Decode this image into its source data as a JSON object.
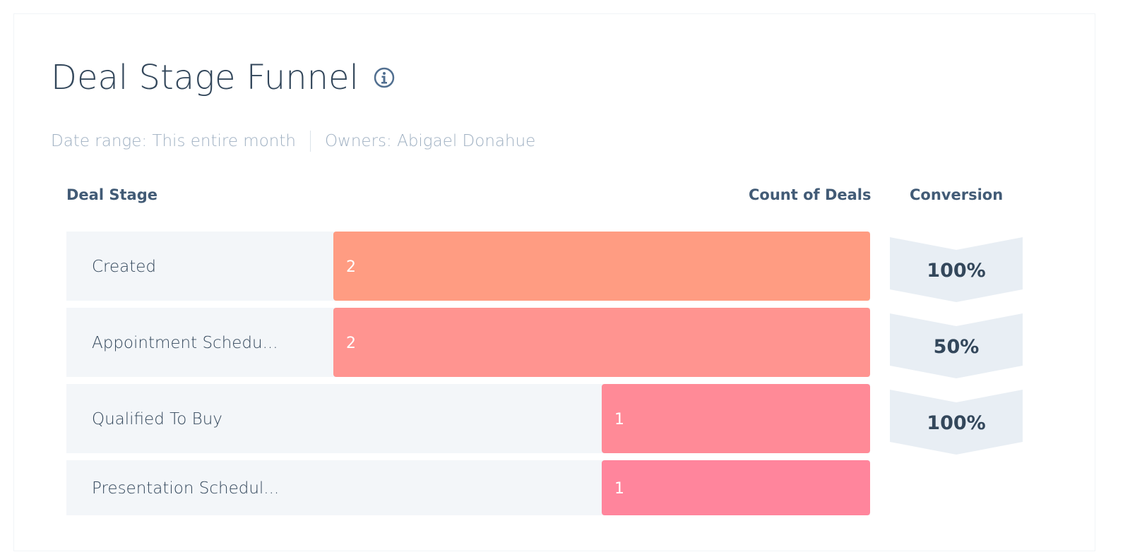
{
  "header": {
    "title": "Deal Stage Funnel",
    "info_icon": "info-icon"
  },
  "filters": {
    "date_range": "Date range: This entire month",
    "owners": "Owners: Abigael Donahue"
  },
  "columns": {
    "stage": "Deal Stage",
    "count": "Count of Deals",
    "conversion": "Conversion"
  },
  "colors": {
    "row_bg": "#f3f6f9",
    "chevron_bg": "#e8eef4",
    "text_dark": "#33475b",
    "bar_colors": [
      "#ff9c82",
      "#ff9490",
      "#ff8a97",
      "#ff859c"
    ]
  },
  "chart_data": {
    "type": "bar",
    "orientation": "horizontal",
    "categories": [
      "Created",
      "Appointment Schedu...",
      "Qualified To Buy",
      "Presentation Schedul..."
    ],
    "values": [
      2,
      2,
      1,
      1
    ],
    "value_labels": [
      "2",
      "2",
      "1",
      "1"
    ],
    "conversions": [
      "100%",
      "50%",
      "100%"
    ],
    "xlim": [
      0,
      2
    ]
  }
}
